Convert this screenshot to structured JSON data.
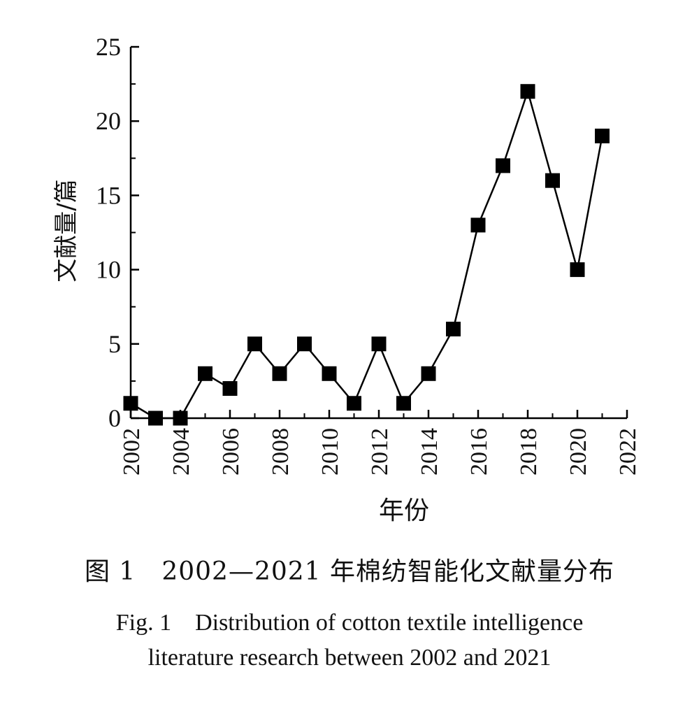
{
  "chart_data": {
    "type": "line",
    "xlabel": "年份",
    "ylabel": "文献量/篇",
    "xlim": [
      2002,
      2022
    ],
    "ylim": [
      0,
      25
    ],
    "x_ticks": [
      "2002",
      "2004",
      "2006",
      "2008",
      "2010",
      "2012",
      "2014",
      "2016",
      "2018",
      "2020",
      "2022"
    ],
    "y_ticks": [
      "0",
      "5",
      "10",
      "15",
      "20",
      "25"
    ],
    "grid": false,
    "marker": "square",
    "x": [
      2002,
      2003,
      2004,
      2005,
      2006,
      2007,
      2008,
      2009,
      2010,
      2011,
      2012,
      2013,
      2014,
      2015,
      2016,
      2017,
      2018,
      2019,
      2020,
      2021
    ],
    "values": [
      1,
      0,
      0,
      3,
      2,
      5,
      3,
      5,
      3,
      1,
      5,
      1,
      3,
      6,
      13,
      17,
      22,
      16,
      10,
      19
    ],
    "color": "#000000"
  },
  "caption": {
    "zh": "图 1　2002—2021 年棉纺智能化文献量分布",
    "en_line1": "Fig. 1　Distribution of cotton textile intelligence",
    "en_line2": "literature research between 2002 and 2021"
  }
}
